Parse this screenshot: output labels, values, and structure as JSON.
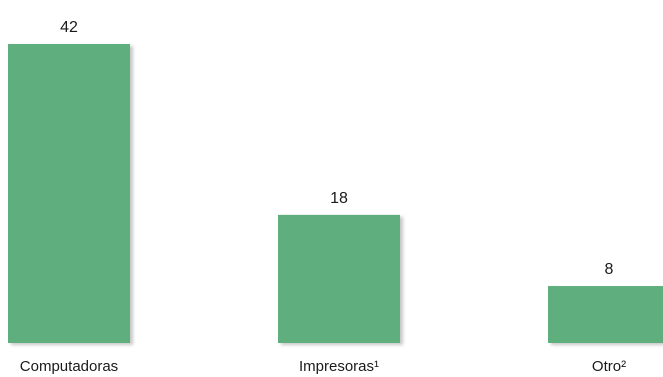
{
  "chart_data": {
    "type": "bar",
    "categories": [
      "Computadoras",
      "Impresoras¹",
      "Otro²"
    ],
    "values": [
      42,
      18,
      8
    ],
    "value_labels": [
      "42",
      "18",
      "8"
    ],
    "ylim": [
      0,
      42
    ],
    "grid": false,
    "bar_color": "#5FAE7D",
    "bar_shadow_color": "#c9c9c9"
  }
}
